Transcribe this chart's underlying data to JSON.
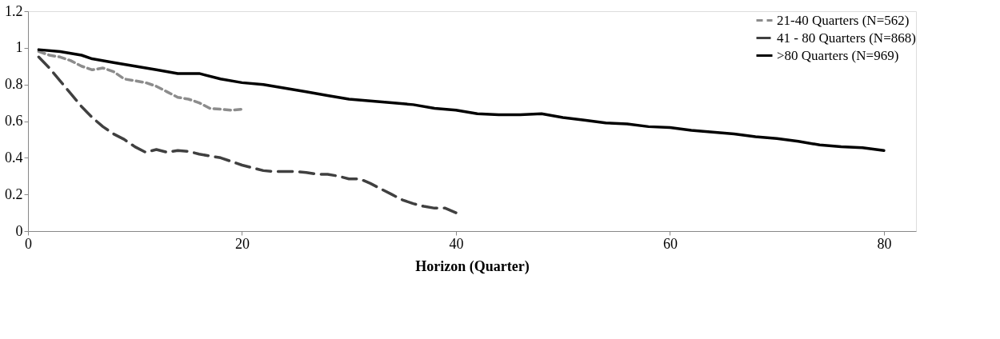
{
  "chart_data": {
    "type": "line",
    "xlabel": "Horizon (Quarter)",
    "xlim": [
      0,
      83
    ],
    "xticks": [
      0,
      20,
      40,
      60,
      80
    ],
    "ylim": [
      0,
      1.2
    ],
    "yticks": [
      0,
      0.2,
      0.4,
      0.6,
      0.8,
      1,
      1.2
    ],
    "grid": false,
    "legend": "top right",
    "marker": "none",
    "series": [
      {
        "name": "21-40 Quarters (N=562)",
        "color": "#8c8c8c",
        "line_style": "dotted",
        "x": [
          1,
          2,
          3,
          4,
          5,
          6,
          7,
          8,
          9,
          10,
          11,
          12,
          13,
          14,
          15,
          16,
          17,
          18,
          19,
          20
        ],
        "values": [
          0.98,
          0.96,
          0.95,
          0.93,
          0.9,
          0.88,
          0.89,
          0.87,
          0.83,
          0.82,
          0.81,
          0.79,
          0.76,
          0.73,
          0.72,
          0.7,
          0.67,
          0.665,
          0.66,
          0.665
        ]
      },
      {
        "name": "41 - 80 Quarters (N=868)",
        "color": "#404040",
        "line_style": "dashed",
        "x": [
          1,
          2,
          3,
          4,
          5,
          6,
          7,
          8,
          9,
          10,
          11,
          12,
          13,
          14,
          15,
          16,
          17,
          18,
          19,
          20,
          21,
          22,
          23,
          24,
          25,
          26,
          27,
          28,
          29,
          30,
          31,
          32,
          33,
          34,
          35,
          36,
          37,
          38,
          39,
          40
        ],
        "values": [
          0.95,
          0.89,
          0.82,
          0.75,
          0.68,
          0.62,
          0.57,
          0.53,
          0.5,
          0.46,
          0.43,
          0.445,
          0.43,
          0.44,
          0.435,
          0.42,
          0.41,
          0.4,
          0.38,
          0.36,
          0.345,
          0.33,
          0.325,
          0.325,
          0.325,
          0.32,
          0.31,
          0.31,
          0.3,
          0.285,
          0.285,
          0.26,
          0.23,
          0.2,
          0.17,
          0.15,
          0.135,
          0.125,
          0.125,
          0.1
        ]
      },
      {
        "name": ">80 Quarters (N=969)",
        "color": "#000000",
        "line_style": "solid",
        "x": [
          1,
          3,
          5,
          6,
          8,
          10,
          12,
          14,
          16,
          18,
          20,
          22,
          24,
          26,
          28,
          30,
          32,
          34,
          36,
          38,
          40,
          42,
          44,
          46,
          48,
          50,
          52,
          54,
          56,
          58,
          60,
          62,
          64,
          66,
          68,
          70,
          72,
          74,
          76,
          78,
          80
        ],
        "values": [
          0.99,
          0.98,
          0.96,
          0.94,
          0.92,
          0.9,
          0.88,
          0.86,
          0.86,
          0.83,
          0.81,
          0.8,
          0.78,
          0.76,
          0.74,
          0.72,
          0.71,
          0.7,
          0.69,
          0.67,
          0.66,
          0.64,
          0.635,
          0.635,
          0.64,
          0.62,
          0.605,
          0.59,
          0.585,
          0.57,
          0.565,
          0.55,
          0.54,
          0.53,
          0.515,
          0.505,
          0.49,
          0.47,
          0.46,
          0.455,
          0.44
        ]
      }
    ]
  }
}
